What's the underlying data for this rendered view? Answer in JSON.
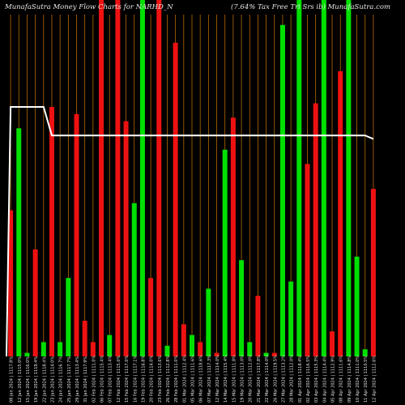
{
  "header": {
    "left": "MunafaSutra  Money Flow  Charts for NARHD_N",
    "right": "(7.64% Tax Free   Tri   Srs ib) MunafaSutra.com"
  },
  "chart_data": {
    "type": "bar",
    "title": "MunafaSutra  Money Flow  Charts for NARHD_N",
    "subtitle": "(7.64% Tax Free   Tri   Srs ib) MunafaSutra.com",
    "ylim": [
      0,
      100
    ],
    "grid": "vertical",
    "colors": {
      "up": "#00e000",
      "down": "#ee1111",
      "line": "#ffffff",
      "grid": "#b86b00",
      "text": "#e8e8e8"
    },
    "categories": [
      "08 Jan 2024 | 1117.8%",
      "12 Jan 2024 | 1115.0%",
      "15 Jan 2024 | 1116.0%",
      "19 Jan 2024 | 1119.4%",
      "22 Jan 2024 | 1118.4%",
      "23 Jan 2024 | 1114.0%",
      "24 Jan 2024 | 1116.7%",
      "25 Jan 2024 | 1117.7%",
      "29 Jan 2024 | 1113.4%",
      "31 Jan 2024 | 1117.9%",
      "02 Feb 2024 | 1111.0%",
      "06 Feb 2024 | 1115.4%",
      "07 Feb 2024 | 1113.4%",
      "12 Feb 2024 | 1115.0%",
      "15 Feb 2024 | 1117.0%",
      "16 Feb 2024 | 1117.1%",
      "19 Feb 2024 | 1116.8%",
      "20 Feb 2024 | 1114.0%",
      "23 Feb 2024 | 1113.6%",
      "26 Feb 2024 | 1112.8%",
      "28 Feb 2024 | 1111.0%",
      "01 Mar 2024 | 1112.4%",
      "05 Mar 2024 | 1111.6%",
      "06 Mar 2024 | 1118.6%",
      "07 Mar 2024 | 1117.3%",
      "12 Mar 2024 | 1114.0%",
      "14 Mar 2024 | 1115.4%",
      "15 Mar 2024 | 1111.8%",
      "19 Mar 2024 | 1113.0%",
      "20 Mar 2024 | 1112.0%",
      "21 Mar 2024 | 1117.8%",
      "22 Mar 2024 | 1114.0%",
      "26 Mar 2024 | 1119.5%",
      "27 Mar 2024 | 1113.2%",
      "28 Mar 2024 | 1112.0%",
      "01 Apr 2024 | 1118.4%",
      "02 Apr 2024 | 1116.5%",
      "03 Apr 2024 | 1115.3%",
      "04 Apr 2024 | 1114.4%",
      "05 Apr 2024 | 1112.9%",
      "08 Apr 2024 | 1111.6%",
      "09 Apr 2024 | 1114.8%",
      "10 Apr 2024 | 1111.0%",
      "11 Apr 2024 | 1110.5%",
      "12 Apr 2024 | 1112.6%"
    ],
    "series": [
      {
        "values": [
          41,
          64,
          1,
          30,
          4,
          70,
          4,
          22,
          68,
          10,
          4,
          100,
          6,
          100,
          66,
          43,
          100,
          22,
          100,
          3,
          88,
          9,
          6,
          4,
          19,
          1,
          58,
          67,
          27,
          4,
          17,
          1,
          1,
          93,
          21,
          100,
          54,
          71,
          100,
          7,
          80,
          100,
          28,
          2,
          47
        ],
        "colors": [
          "d",
          "u",
          "u",
          "d",
          "u",
          "d",
          "u",
          "u",
          "d",
          "d",
          "d",
          "d",
          "u",
          "d",
          "d",
          "u",
          "u",
          "d",
          "d",
          "u",
          "d",
          "d",
          "u",
          "d",
          "u",
          "d",
          "u",
          "d",
          "u",
          "u",
          "d",
          "u",
          "d",
          "u",
          "u",
          "u",
          "d",
          "d",
          "u",
          "d",
          "d",
          "u",
          "u",
          "u",
          "d"
        ]
      }
    ],
    "line": {
      "name": "",
      "values": [
        70,
        70,
        70,
        70,
        70,
        62,
        62,
        62,
        62,
        62,
        62,
        62,
        62,
        62,
        62,
        62,
        62,
        62,
        62,
        62,
        62,
        62,
        62,
        62,
        62,
        62,
        62,
        62,
        62,
        62,
        62,
        62,
        62,
        62,
        62,
        62,
        62,
        62,
        62,
        62,
        62,
        62,
        62,
        62,
        61
      ]
    }
  }
}
